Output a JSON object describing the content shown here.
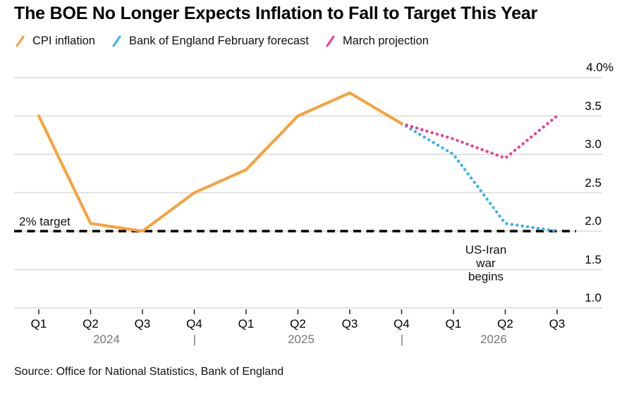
{
  "title": "The BOE No Longer Expects Inflation to Fall to Target This Year",
  "legend": [
    {
      "label": "CPI inflation",
      "color": "#F8A13A",
      "style": "solid"
    },
    {
      "label": "Bank of England February forecast",
      "color": "#3AB1E8",
      "style": "dotted"
    },
    {
      "label": "March projection",
      "color": "#EF3A93",
      "style": "dotted"
    }
  ],
  "chart_data": {
    "type": "line",
    "x": [
      "Q1",
      "Q2",
      "Q3",
      "Q4",
      "Q1",
      "Q2",
      "Q3",
      "Q4",
      "Q1",
      "Q2",
      "Q3"
    ],
    "x_year_row": [
      "2024",
      "|",
      "2025",
      "|",
      "2026"
    ],
    "series": [
      {
        "name": "CPI inflation",
        "color": "#F8A13A",
        "style": "solid",
        "values": [
          3.5,
          2.1,
          2.0,
          2.5,
          2.8,
          3.5,
          3.8,
          3.4,
          null,
          null,
          null
        ]
      },
      {
        "name": "Bank of England February forecast",
        "color": "#3AB1E8",
        "style": "dotted",
        "values": [
          null,
          null,
          null,
          null,
          null,
          null,
          null,
          3.4,
          3.0,
          2.1,
          2.0
        ]
      },
      {
        "name": "March projection",
        "color": "#EF3A93",
        "style": "dotted",
        "values": [
          null,
          null,
          null,
          null,
          null,
          null,
          null,
          3.4,
          3.2,
          2.95,
          3.5
        ]
      }
    ],
    "yticks": [
      "4.0%",
      "3.5",
      "3.0",
      "2.5",
      "2.0",
      "1.5",
      "1.0"
    ],
    "ytick_values": [
      4.0,
      3.5,
      3.0,
      2.5,
      2.0,
      1.5,
      1.0
    ],
    "ylim": [
      1.0,
      4.0
    ],
    "grid": true,
    "legend_position": "top",
    "target_line": {
      "value": 2.0,
      "label": "2% target"
    },
    "annotation": "US-Iran\nwar\nbegins",
    "colors": {
      "gridline": "#D9D9D9",
      "tick": "#222222",
      "target": "#000000",
      "year_text": "#767676"
    }
  },
  "source": "Source: Office for National Statistics, Bank of England"
}
